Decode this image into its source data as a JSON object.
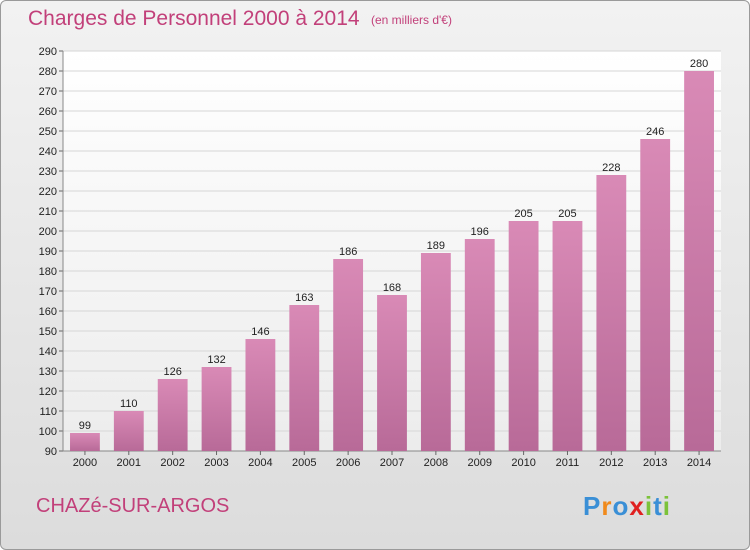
{
  "title": "Charges de Personnel 2000 à 2014",
  "subtitle": "(en milliers d'€)",
  "commune": "CHAZé-SUR-ARGOS",
  "logo": {
    "letters": [
      "P",
      "r",
      "o",
      "x",
      "i",
      "t",
      "i"
    ],
    "colors": [
      "#3a8fd6",
      "#f08a1c",
      "#3a8fd6",
      "#e02020",
      "#7cc23a",
      "#3a8fd6",
      "#7cc23a"
    ]
  },
  "colors": {
    "title": "#c2407a",
    "bar": "#d98ab6",
    "bar_dark": "#b86a98"
  },
  "chart_data": {
    "type": "bar",
    "categories": [
      "2000",
      "2001",
      "2002",
      "2003",
      "2004",
      "2005",
      "2006",
      "2007",
      "2008",
      "2009",
      "2010",
      "2011",
      "2012",
      "2013",
      "2014"
    ],
    "values": [
      99,
      110,
      126,
      132,
      146,
      163,
      186,
      168,
      189,
      196,
      205,
      205,
      228,
      246,
      280
    ],
    "ylim": [
      90,
      290
    ],
    "yticks": [
      90,
      100,
      110,
      120,
      130,
      140,
      150,
      160,
      170,
      180,
      190,
      200,
      210,
      220,
      230,
      240,
      250,
      260,
      270,
      280,
      290
    ],
    "grid": true
  }
}
